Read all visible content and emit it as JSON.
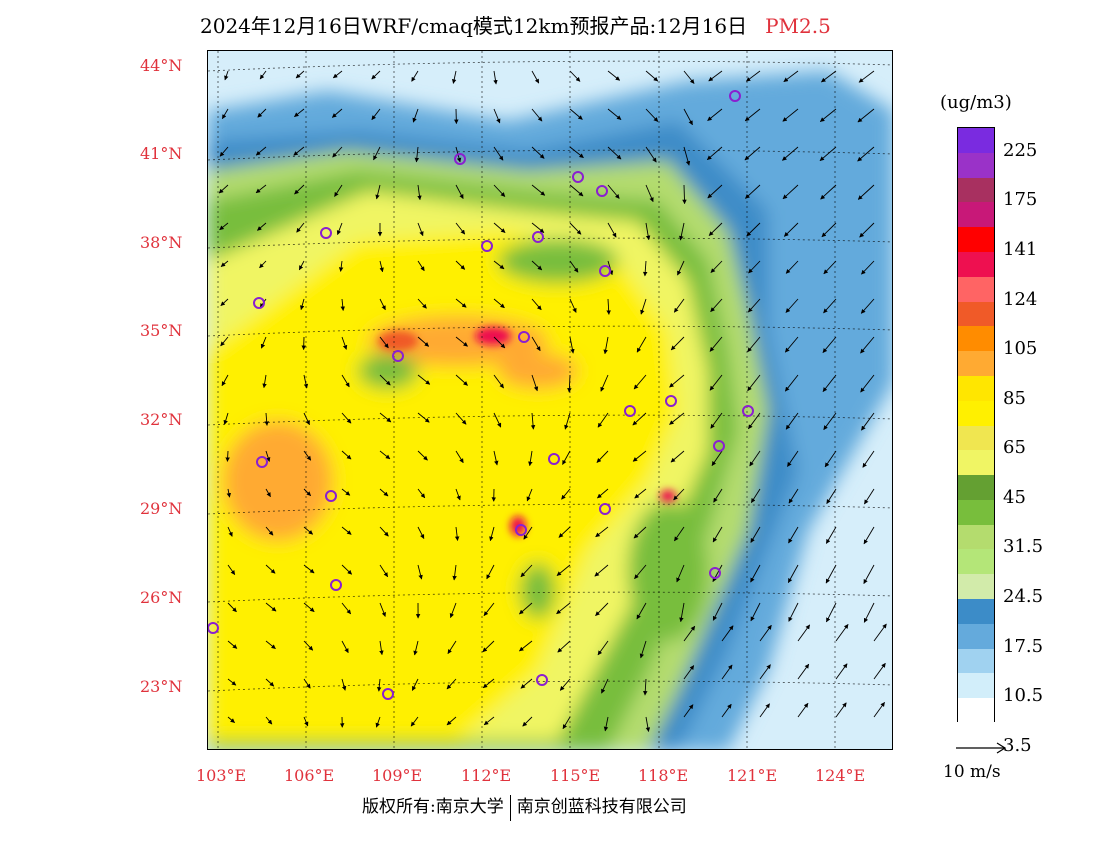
{
  "title": {
    "main": "2024年12月16日WRF/cmaq模式12km预报产品:12月16日",
    "pollutant": "PM2.5"
  },
  "lat_labels": [
    "44°N",
    "41°N",
    "38°N",
    "35°N",
    "32°N",
    "29°N",
    "26°N",
    "23°N"
  ],
  "lon_labels": [
    "103°E",
    "106°E",
    "109°E",
    "112°E",
    "115°E",
    "118°E",
    "121°E",
    "124°E"
  ],
  "legend": {
    "unit": "(ug/m3)",
    "labels": [
      "225",
      "175",
      "141",
      "124",
      "105",
      "85",
      "65",
      "45",
      "31.5",
      "24.5",
      "17.5",
      "10.5",
      "3.5"
    ],
    "colors": [
      "#7a2be0",
      "#9a32c8",
      "#a83060",
      "#c81878",
      "#ff0000",
      "#ee1050",
      "#ff6464",
      "#f05a28",
      "#ff8c00",
      "#ffaa32",
      "#ffe600",
      "#fff000",
      "#f0e650",
      "#f0f564",
      "#64a032",
      "#78be3c",
      "#b4dc6e",
      "#b4e678",
      "#d2ebaa",
      "#3c8cc8",
      "#64aadc",
      "#a0d2f0",
      "#d2eefa",
      "#ffffff"
    ]
  },
  "wind_reference": {
    "label": "10 m/s"
  },
  "copyright": {
    "left": "版权所有:南京大学",
    "right": "南京创蓝科技有限公司"
  }
}
